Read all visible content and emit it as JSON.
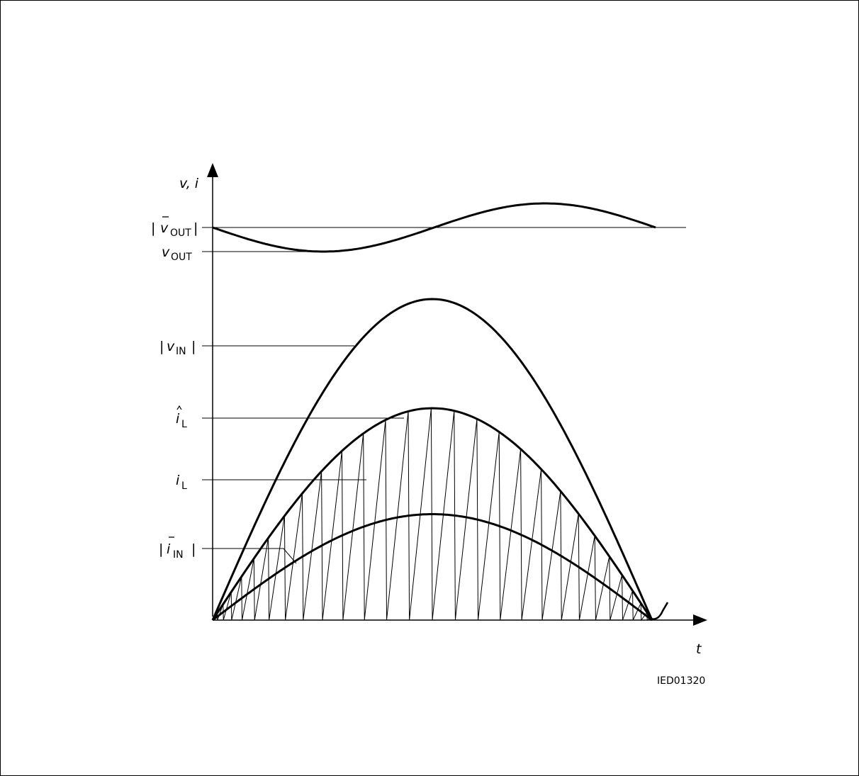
{
  "diagram": {
    "axis_y_label": "v, i",
    "axis_x_label": "t",
    "figure_code": "IED01320",
    "labels": {
      "vout_avg": {
        "main": "v",
        "sub": "OUT",
        "bars": "|  |",
        "overline": true
      },
      "vout": {
        "main": "v",
        "sub": "OUT"
      },
      "vin_abs": {
        "main": "v",
        "sub": "IN",
        "bars": "|  |"
      },
      "il_peak": {
        "main": "i",
        "sub": "L",
        "hat": true
      },
      "il": {
        "main": "i",
        "sub": "L"
      },
      "iin_avg": {
        "main": "i",
        "sub": "IN",
        "bars": "|  |",
        "overline": true
      }
    },
    "pfc_cycle_shape": {
      "vout_ripple_amplitude": 0.5,
      "vin_peak": 1.0,
      "il_peak_ratio": 0.66,
      "iin_avg_ratio": 0.33,
      "switching_cycles_per_half_period": 15
    },
    "colors": {
      "stroke": "#000000",
      "background": "#ffffff"
    }
  }
}
